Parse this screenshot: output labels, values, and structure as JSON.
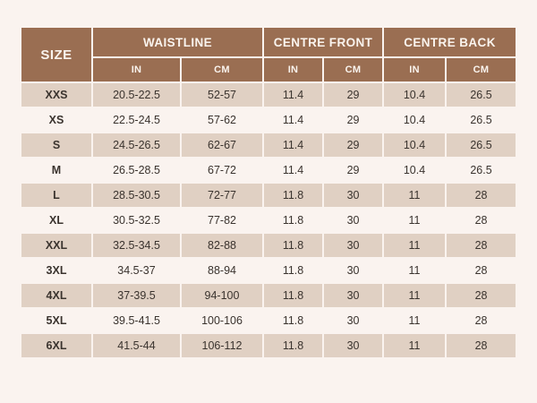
{
  "colors": {
    "page_bg": "#faf3ef",
    "header_bg": "#9a6e52",
    "header_text": "#faf4ee",
    "stripe_bg": "#e0d0c3",
    "body_text": "#3a332e"
  },
  "chart_data": {
    "type": "table",
    "corner_header": "SIZE",
    "group_headers": [
      "WAISTLINE",
      "CENTRE FRONT",
      "CENTRE BACK"
    ],
    "unit_headers": [
      "IN",
      "CM",
      "IN",
      "CM",
      "IN",
      "CM"
    ],
    "rows": [
      {
        "size": "XXS",
        "values": [
          "20.5-22.5",
          "52-57",
          "11.4",
          "29",
          "10.4",
          "26.5"
        ]
      },
      {
        "size": "XS",
        "values": [
          "22.5-24.5",
          "57-62",
          "11.4",
          "29",
          "10.4",
          "26.5"
        ]
      },
      {
        "size": "S",
        "values": [
          "24.5-26.5",
          "62-67",
          "11.4",
          "29",
          "10.4",
          "26.5"
        ]
      },
      {
        "size": "M",
        "values": [
          "26.5-28.5",
          "67-72",
          "11.4",
          "29",
          "10.4",
          "26.5"
        ]
      },
      {
        "size": "L",
        "values": [
          "28.5-30.5",
          "72-77",
          "11.8",
          "30",
          "11",
          "28"
        ]
      },
      {
        "size": "XL",
        "values": [
          "30.5-32.5",
          "77-82",
          "11.8",
          "30",
          "11",
          "28"
        ]
      },
      {
        "size": "XXL",
        "values": [
          "32.5-34.5",
          "82-88",
          "11.8",
          "30",
          "11",
          "28"
        ]
      },
      {
        "size": "3XL",
        "values": [
          "34.5-37",
          "88-94",
          "11.8",
          "30",
          "11",
          "28"
        ]
      },
      {
        "size": "4XL",
        "values": [
          "37-39.5",
          "94-100",
          "11.8",
          "30",
          "11",
          "28"
        ]
      },
      {
        "size": "5XL",
        "values": [
          "39.5-41.5",
          "100-106",
          "11.8",
          "30",
          "11",
          "28"
        ]
      },
      {
        "size": "6XL",
        "values": [
          "41.5-44",
          "106-112",
          "11.8",
          "30",
          "11",
          "28"
        ]
      }
    ]
  }
}
